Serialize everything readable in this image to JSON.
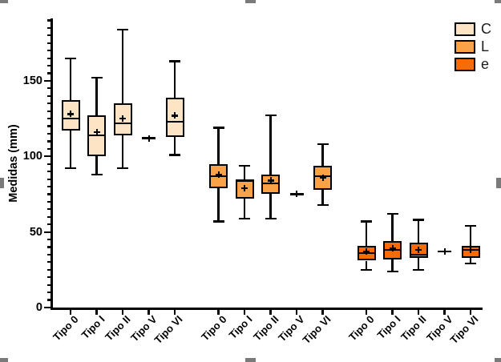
{
  "chart_data": {
    "type": "box",
    "title": "",
    "xlabel": "",
    "ylabel": "Medidas (mm)",
    "ylim": [
      0,
      190
    ],
    "yticks_major": [
      0,
      50,
      100,
      150
    ],
    "ytick_minor_step": 5,
    "grid": false,
    "legend_position": "top-right",
    "categories": [
      "Tipo 0",
      "Tipo I",
      "Tipo II",
      "Tipo V",
      "Tipo VI"
    ],
    "series": [
      {
        "name": "C",
        "color": "#FCE4C5",
        "boxes": [
          {
            "category": "Tipo 0",
            "min": 92,
            "q1": 117,
            "median": 125,
            "q3": 137,
            "max": 165,
            "mean": 128
          },
          {
            "category": "Tipo I",
            "min": 88,
            "q1": 100,
            "median": 114,
            "q3": 127,
            "max": 152,
            "mean": 116
          },
          {
            "category": "Tipo II",
            "min": 92,
            "q1": 114,
            "median": 122,
            "q3": 135,
            "max": 184,
            "mean": 125
          },
          {
            "category": "Tipo V",
            "min": 112,
            "q1": 112,
            "median": 112,
            "q3": 112,
            "max": 112,
            "mean": 112
          },
          {
            "category": "Tipo VI",
            "min": 101,
            "q1": 113,
            "median": 123,
            "q3": 139,
            "max": 163,
            "mean": 127
          }
        ]
      },
      {
        "name": "L",
        "color": "#F9A247",
        "boxes": [
          {
            "category": "Tipo 0",
            "min": 57,
            "q1": 79,
            "median": 87,
            "q3": 95,
            "max": 119,
            "mean": 88
          },
          {
            "category": "Tipo I",
            "min": 59,
            "q1": 72,
            "median": 84,
            "q3": 85,
            "max": 94,
            "mean": 79
          },
          {
            "category": "Tipo II",
            "min": 59,
            "q1": 75,
            "median": 82,
            "q3": 88,
            "max": 127,
            "mean": 84
          },
          {
            "category": "Tipo V",
            "min": 75,
            "q1": 75,
            "median": 75,
            "q3": 75,
            "max": 75,
            "mean": 75
          },
          {
            "category": "Tipo VI",
            "min": 68,
            "q1": 78,
            "median": 87,
            "q3": 94,
            "max": 108,
            "mean": 86
          }
        ]
      },
      {
        "name": "e",
        "color": "#F96B06",
        "boxes": [
          {
            "category": "Tipo 0",
            "min": 25,
            "q1": 31,
            "median": 36,
            "q3": 41,
            "max": 57,
            "mean": 37
          },
          {
            "category": "Tipo I",
            "min": 24,
            "q1": 32,
            "median": 38,
            "q3": 44,
            "max": 62,
            "mean": 39
          },
          {
            "category": "Tipo II",
            "min": 25,
            "q1": 33,
            "median": 35,
            "q3": 43,
            "max": 58,
            "mean": 38
          },
          {
            "category": "Tipo V",
            "min": 37,
            "q1": 37,
            "median": 37,
            "q3": 37,
            "max": 37,
            "mean": 37
          },
          {
            "category": "Tipo VI",
            "min": 29,
            "q1": 33,
            "median": 38,
            "q3": 41,
            "max": 54,
            "mean": 38
          }
        ]
      }
    ]
  },
  "selection": {
    "handle_color": "#7a7a7a"
  }
}
